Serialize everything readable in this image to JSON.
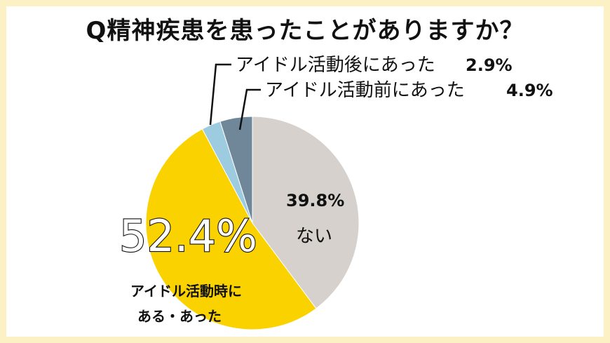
{
  "chart_data": {
    "type": "pie",
    "title": "Q精神疾患を患ったことがありますか？",
    "slices": [
      {
        "label": "ない",
        "value": 39.8,
        "value_label": "39.8%",
        "color": "#D6D1CC"
      },
      {
        "label_lines": [
          "アイドル活動時に",
          "ある・あった"
        ],
        "value": 52.4,
        "value_label": "52.4%",
        "color": "#FAD200"
      },
      {
        "label": "アイドル活動後にあった",
        "value": 2.9,
        "value_label": "2.9%",
        "color": "#9DCCE0"
      },
      {
        "label": "アイドル活動前にあった",
        "value": 4.9,
        "value_label": "4.9%",
        "color": "#6F8799"
      }
    ],
    "start_angle_deg": 0,
    "direction": "clockwise",
    "legend": "none",
    "colors": {
      "frame": "#FCF1C4",
      "text": "#111111"
    }
  }
}
